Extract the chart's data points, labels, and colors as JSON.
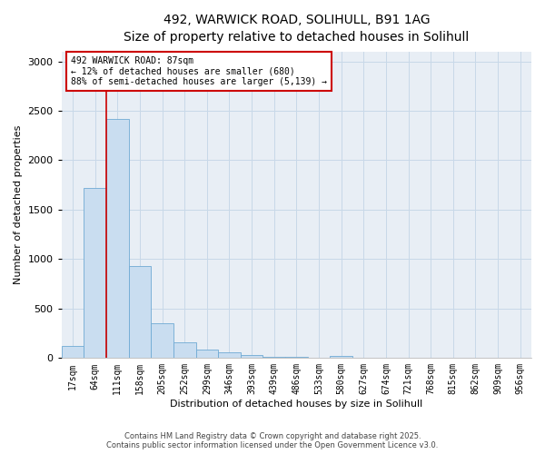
{
  "title_line1": "492, WARWICK ROAD, SOLIHULL, B91 1AG",
  "title_line2": "Size of property relative to detached houses in Solihull",
  "xlabel": "Distribution of detached houses by size in Solihull",
  "ylabel": "Number of detached properties",
  "categories": [
    "17sqm",
    "64sqm",
    "111sqm",
    "158sqm",
    "205sqm",
    "252sqm",
    "299sqm",
    "346sqm",
    "393sqm",
    "439sqm",
    "486sqm",
    "533sqm",
    "580sqm",
    "627sqm",
    "674sqm",
    "721sqm",
    "768sqm",
    "815sqm",
    "862sqm",
    "909sqm",
    "956sqm"
  ],
  "values": [
    125,
    1720,
    2420,
    930,
    350,
    160,
    90,
    55,
    30,
    15,
    10,
    5,
    25,
    0,
    0,
    0,
    0,
    0,
    0,
    0,
    0
  ],
  "bar_color": "#c9ddf0",
  "bar_edge_color": "#6faad4",
  "red_line_x": 1.5,
  "annotation_line1": "492 WARWICK ROAD: 87sqm",
  "annotation_line2": "← 12% of detached houses are smaller (680)",
  "annotation_line3": "88% of semi-detached houses are larger (5,139) →",
  "annotation_box_facecolor": "white",
  "annotation_box_edgecolor": "#cc0000",
  "grid_color": "#c8d8e8",
  "background_color": "#e8eef5",
  "footnote_line1": "Contains HM Land Registry data © Crown copyright and database right 2025.",
  "footnote_line2": "Contains public sector information licensed under the Open Government Licence v3.0.",
  "ylim": [
    0,
    3100
  ],
  "yticks": [
    0,
    500,
    1000,
    1500,
    2000,
    2500,
    3000
  ],
  "title_fontsize": 10,
  "xlabel_fontsize": 8,
  "ylabel_fontsize": 8,
  "tick_fontsize": 7,
  "footnote_fontsize": 6
}
